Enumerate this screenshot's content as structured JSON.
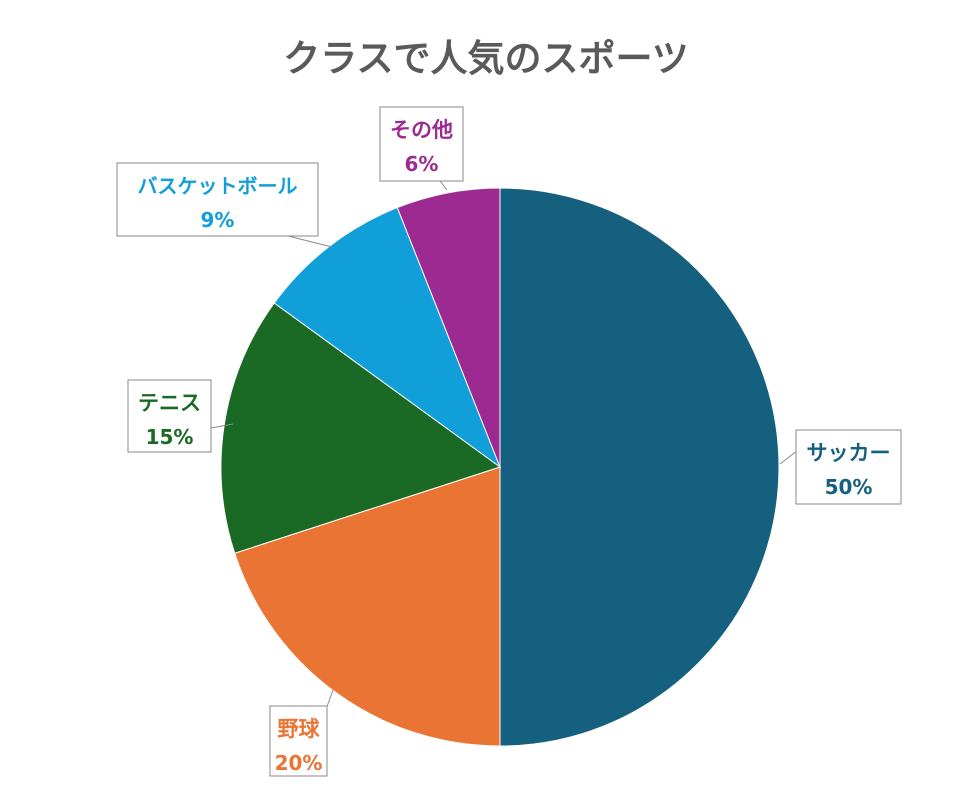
{
  "chart_data": {
    "type": "pie",
    "title": "クラスで人気のスポーツ",
    "label_format": "{label}\n{value}%",
    "slices": [
      {
        "label": "サッカー",
        "value": 50,
        "value_label": "50%",
        "color": "#16607f"
      },
      {
        "label": "野球",
        "value": 20,
        "value_label": "20%",
        "color": "#e97434"
      },
      {
        "label": "テニス",
        "value": 15,
        "value_label": "15%",
        "color": "#1a6a25"
      },
      {
        "label": "バスケットボール",
        "value": 9,
        "value_label": "9%",
        "color": "#109fd8"
      },
      {
        "label": "その他",
        "value": 6,
        "value_label": "6%",
        "color": "#9c2a90"
      }
    ],
    "start_angle_deg": 0,
    "direction": "clockwise",
    "legend": "none"
  }
}
